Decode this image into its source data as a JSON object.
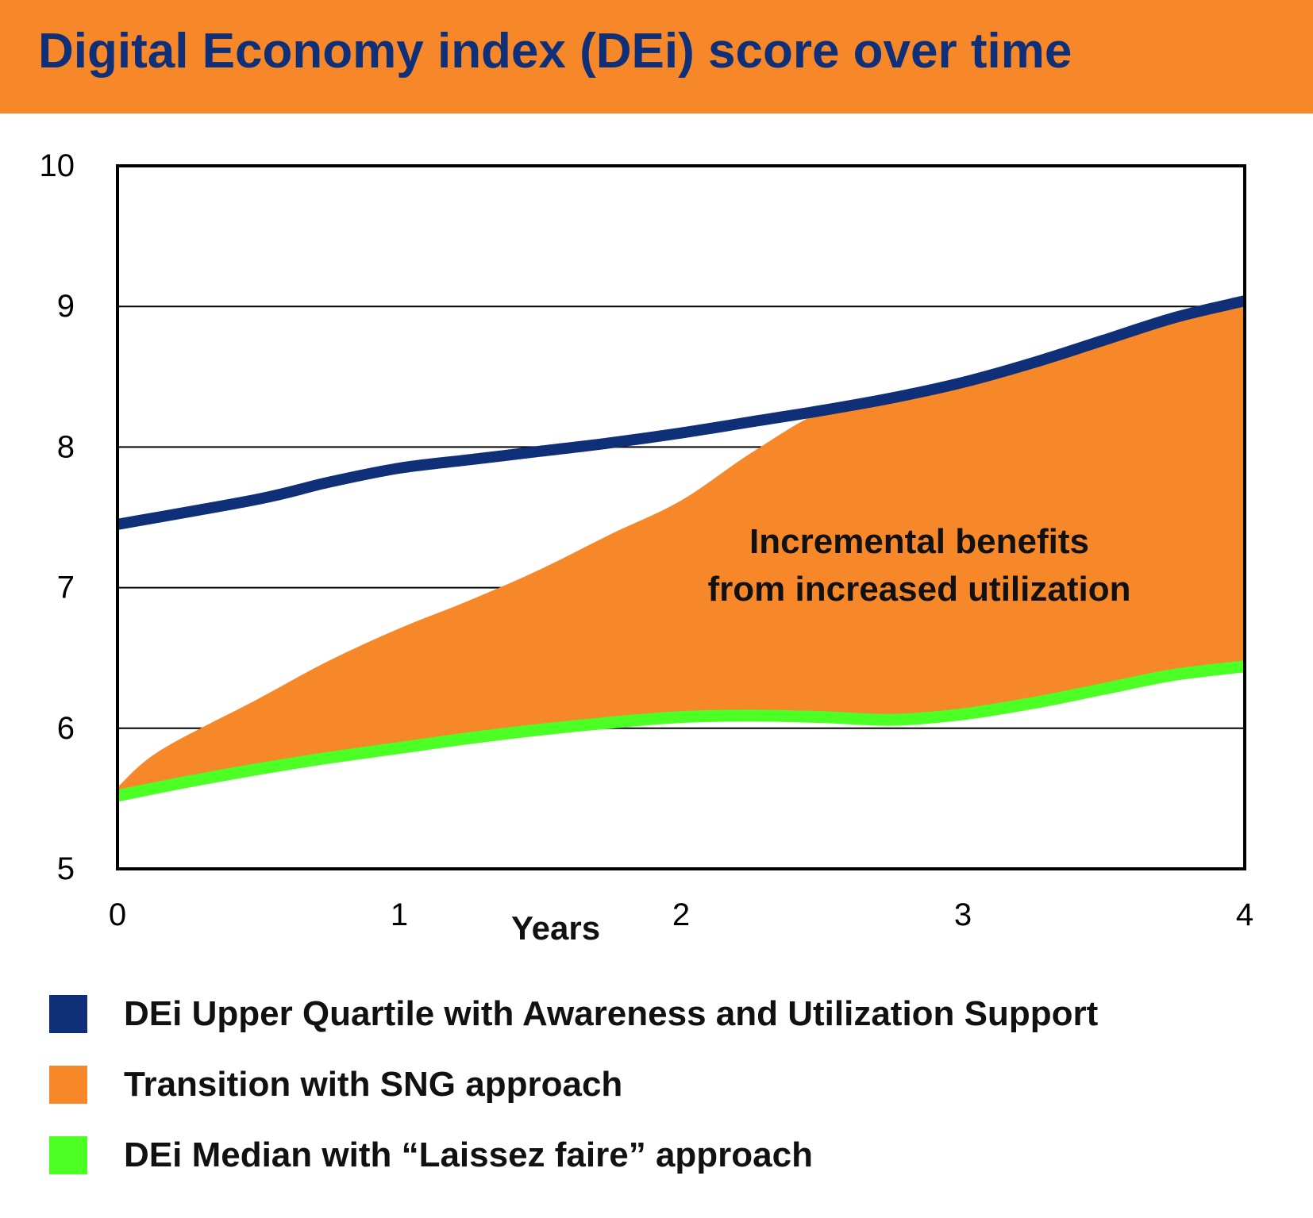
{
  "header": {
    "title": "Digital Economy index (DEi) score over time"
  },
  "chart_data": {
    "type": "area",
    "title": "Digital Economy index (DEi) score over time",
    "xlabel": "Years",
    "ylabel": "",
    "xlim": [
      0,
      4
    ],
    "ylim": [
      5,
      10
    ],
    "x_ticks": [
      "0",
      "1",
      "2",
      "3",
      "4"
    ],
    "y_ticks": [
      "5",
      "6",
      "7",
      "8",
      "9",
      "10"
    ],
    "grid": true,
    "legend_position": "bottom",
    "annotation": [
      "Incremental benefits",
      "from increased utilization"
    ],
    "series": [
      {
        "name": "DEi Upper Quartile with Awareness and Utilization Support",
        "kind": "line",
        "color": "#0f2f78",
        "points": [
          [
            0,
            7.45
          ],
          [
            0.5,
            7.63
          ],
          [
            0.75,
            7.75
          ],
          [
            1.0,
            7.85
          ],
          [
            1.25,
            7.91
          ],
          [
            1.5,
            7.97
          ],
          [
            1.75,
            8.03
          ],
          [
            2.0,
            8.1
          ],
          [
            2.25,
            8.18
          ],
          [
            2.5,
            8.26
          ],
          [
            2.75,
            8.35
          ],
          [
            3.0,
            8.46
          ],
          [
            3.25,
            8.6
          ],
          [
            3.5,
            8.76
          ],
          [
            3.75,
            8.92
          ],
          [
            4.0,
            9.04
          ]
        ]
      },
      {
        "name": "Transition with SNG approach",
        "kind": "area",
        "color": "#f7882a",
        "points": [
          [
            0,
            5.58
          ],
          [
            0.15,
            5.84
          ],
          [
            0.5,
            6.21
          ],
          [
            0.75,
            6.48
          ],
          [
            1.0,
            6.71
          ],
          [
            1.25,
            6.91
          ],
          [
            1.5,
            7.13
          ],
          [
            1.75,
            7.38
          ],
          [
            2.0,
            7.62
          ],
          [
            2.25,
            7.96
          ],
          [
            2.5,
            8.25
          ],
          [
            2.75,
            8.35
          ],
          [
            3.0,
            8.46
          ],
          [
            3.25,
            8.6
          ],
          [
            3.5,
            8.76
          ],
          [
            3.75,
            8.92
          ],
          [
            4.0,
            9.02
          ]
        ]
      },
      {
        "name": "DEi Median with “Laissez faire” approach",
        "kind": "line",
        "color": "#4cff24",
        "points": [
          [
            0,
            5.52
          ],
          [
            0.25,
            5.62
          ],
          [
            0.5,
            5.71
          ],
          [
            0.75,
            5.79
          ],
          [
            1.0,
            5.86
          ],
          [
            1.25,
            5.93
          ],
          [
            1.5,
            5.99
          ],
          [
            1.75,
            6.04
          ],
          [
            2.0,
            6.08
          ],
          [
            2.25,
            6.09
          ],
          [
            2.5,
            6.08
          ],
          [
            2.75,
            6.06
          ],
          [
            3.0,
            6.1
          ],
          [
            3.25,
            6.18
          ],
          [
            3.5,
            6.28
          ],
          [
            3.75,
            6.38
          ],
          [
            4.0,
            6.44
          ]
        ]
      }
    ]
  }
}
